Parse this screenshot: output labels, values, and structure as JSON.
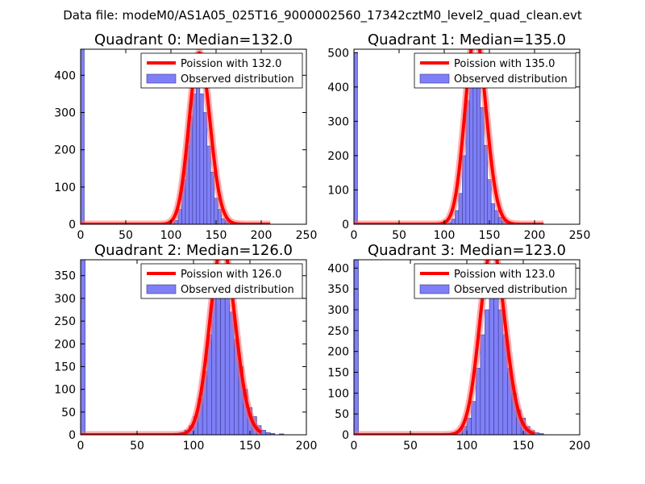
{
  "suptitle": "Data file: modeM0/AS1A05_025T16_9000002560_17342cztM0_level2_quad_clean.evt",
  "chart_data": [
    {
      "type": "bar",
      "title": "Quadrant 0: Median=132.0",
      "median": 132.0,
      "xlim": [
        0,
        250
      ],
      "ylim": [
        0,
        470
      ],
      "xticks": [
        0,
        50,
        100,
        150,
        200,
        250
      ],
      "yticks": [
        0,
        100,
        200,
        300,
        400
      ],
      "bin_width": 4,
      "legend": [
        "Poission with 132.0",
        "Observed distribution"
      ],
      "bins": [
        {
          "x": 0,
          "count": 470
        },
        {
          "x": 76,
          "count": 3
        },
        {
          "x": 80,
          "count": 3
        },
        {
          "x": 96,
          "count": 2
        },
        {
          "x": 100,
          "count": 5
        },
        {
          "x": 104,
          "count": 10
        },
        {
          "x": 108,
          "count": 40
        },
        {
          "x": 112,
          "count": 120
        },
        {
          "x": 116,
          "count": 210
        },
        {
          "x": 120,
          "count": 290
        },
        {
          "x": 124,
          "count": 350
        },
        {
          "x": 128,
          "count": 400
        },
        {
          "x": 132,
          "count": 350
        },
        {
          "x": 136,
          "count": 300
        },
        {
          "x": 140,
          "count": 210
        },
        {
          "x": 144,
          "count": 140
        },
        {
          "x": 148,
          "count": 70
        },
        {
          "x": 152,
          "count": 40
        },
        {
          "x": 156,
          "count": 15
        },
        {
          "x": 160,
          "count": 10
        },
        {
          "x": 164,
          "count": 5
        },
        {
          "x": 168,
          "count": 2
        }
      ]
    },
    {
      "type": "bar",
      "title": "Quadrant 1: Median=135.0",
      "median": 135.0,
      "xlim": [
        0,
        250
      ],
      "ylim": [
        0,
        510
      ],
      "xticks": [
        0,
        50,
        100,
        150,
        200,
        250
      ],
      "yticks": [
        0,
        100,
        200,
        300,
        400,
        500
      ],
      "bin_width": 4,
      "legend": [
        "Poission with 135.0",
        "Observed distribution"
      ],
      "bins": [
        {
          "x": 0,
          "count": 500
        },
        {
          "x": 80,
          "count": 3
        },
        {
          "x": 100,
          "count": 2
        },
        {
          "x": 104,
          "count": 5
        },
        {
          "x": 108,
          "count": 15
        },
        {
          "x": 112,
          "count": 40
        },
        {
          "x": 116,
          "count": 90
        },
        {
          "x": 120,
          "count": 200
        },
        {
          "x": 124,
          "count": 360
        },
        {
          "x": 128,
          "count": 410
        },
        {
          "x": 132,
          "count": 480
        },
        {
          "x": 136,
          "count": 440
        },
        {
          "x": 140,
          "count": 340
        },
        {
          "x": 144,
          "count": 230
        },
        {
          "x": 148,
          "count": 130
        },
        {
          "x": 152,
          "count": 60
        },
        {
          "x": 156,
          "count": 40
        },
        {
          "x": 160,
          "count": 20
        },
        {
          "x": 164,
          "count": 10
        },
        {
          "x": 168,
          "count": 5
        },
        {
          "x": 172,
          "count": 3
        }
      ]
    },
    {
      "type": "bar",
      "title": "Quadrant 2: Median=126.0",
      "median": 126.0,
      "xlim": [
        0,
        200
      ],
      "ylim": [
        0,
        385
      ],
      "xticks": [
        0,
        50,
        100,
        150,
        200
      ],
      "yticks": [
        0,
        50,
        100,
        150,
        200,
        250,
        300,
        350
      ],
      "bin_width": 4,
      "legend": [
        "Poission with 126.0",
        "Observed distribution"
      ],
      "bins": [
        {
          "x": 0,
          "count": 385
        },
        {
          "x": 72,
          "count": 3
        },
        {
          "x": 84,
          "count": 3
        },
        {
          "x": 88,
          "count": 5
        },
        {
          "x": 92,
          "count": 10
        },
        {
          "x": 96,
          "count": 20
        },
        {
          "x": 100,
          "count": 40
        },
        {
          "x": 104,
          "count": 80
        },
        {
          "x": 108,
          "count": 140
        },
        {
          "x": 112,
          "count": 220
        },
        {
          "x": 116,
          "count": 300
        },
        {
          "x": 120,
          "count": 340
        },
        {
          "x": 124,
          "count": 360
        },
        {
          "x": 128,
          "count": 330
        },
        {
          "x": 132,
          "count": 270
        },
        {
          "x": 136,
          "count": 210
        },
        {
          "x": 140,
          "count": 150
        },
        {
          "x": 144,
          "count": 100
        },
        {
          "x": 148,
          "count": 60
        },
        {
          "x": 152,
          "count": 40
        },
        {
          "x": 156,
          "count": 20
        },
        {
          "x": 160,
          "count": 10
        },
        {
          "x": 164,
          "count": 5
        },
        {
          "x": 168,
          "count": 3
        },
        {
          "x": 176,
          "count": 2
        }
      ]
    },
    {
      "type": "bar",
      "title": "Quadrant 3: Median=123.0",
      "median": 123.0,
      "xlim": [
        0,
        200
      ],
      "ylim": [
        0,
        420
      ],
      "xticks": [
        0,
        50,
        100,
        150,
        200
      ],
      "yticks": [
        0,
        50,
        100,
        150,
        200,
        250,
        300,
        350,
        400
      ],
      "bin_width": 4,
      "legend": [
        "Poission with 123.0",
        "Observed distribution"
      ],
      "bins": [
        {
          "x": 0,
          "count": 420
        },
        {
          "x": 72,
          "count": 3
        },
        {
          "x": 80,
          "count": 3
        },
        {
          "x": 88,
          "count": 5
        },
        {
          "x": 92,
          "count": 10
        },
        {
          "x": 96,
          "count": 20
        },
        {
          "x": 100,
          "count": 40
        },
        {
          "x": 104,
          "count": 80
        },
        {
          "x": 108,
          "count": 160
        },
        {
          "x": 112,
          "count": 240
        },
        {
          "x": 116,
          "count": 300
        },
        {
          "x": 120,
          "count": 380
        },
        {
          "x": 124,
          "count": 390
        },
        {
          "x": 128,
          "count": 300
        },
        {
          "x": 132,
          "count": 240
        },
        {
          "x": 136,
          "count": 160
        },
        {
          "x": 140,
          "count": 100
        },
        {
          "x": 144,
          "count": 60
        },
        {
          "x": 148,
          "count": 40
        },
        {
          "x": 152,
          "count": 20
        },
        {
          "x": 156,
          "count": 10
        },
        {
          "x": 160,
          "count": 5
        },
        {
          "x": 164,
          "count": 3
        }
      ]
    }
  ]
}
